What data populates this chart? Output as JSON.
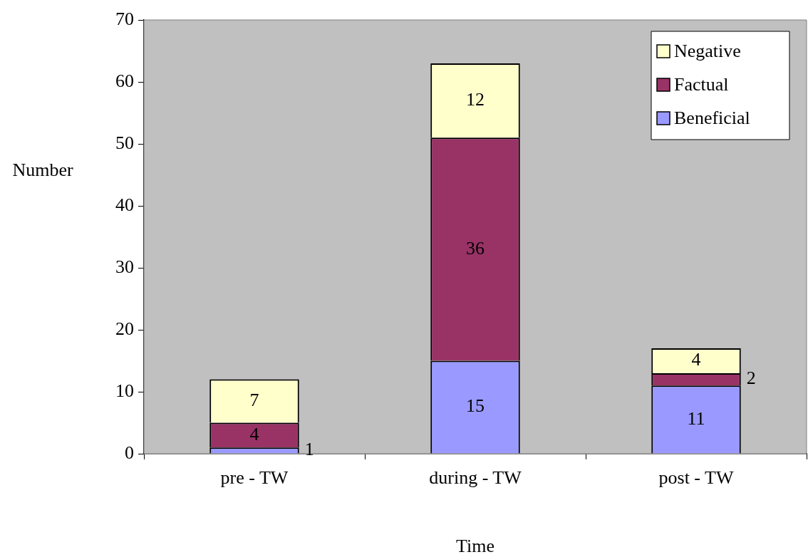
{
  "chart_data": {
    "type": "bar",
    "stacked": true,
    "xlabel": "Time",
    "ylabel": "Number",
    "categories": [
      "pre - TW",
      "during - TW",
      "post - TW"
    ],
    "series": [
      {
        "name": "Beneficial",
        "color": "#9999ff",
        "values": [
          1,
          15,
          11
        ]
      },
      {
        "name": "Factual",
        "color": "#993366",
        "values": [
          4,
          36,
          2
        ]
      },
      {
        "name": "Negative",
        "color": "#ffffcc",
        "values": [
          7,
          12,
          4
        ]
      }
    ],
    "ylim": [
      0,
      70
    ],
    "yticks": [
      0,
      10,
      20,
      30,
      40,
      50,
      60,
      70
    ],
    "grid": false,
    "legend": "top right",
    "data_labels": true
  }
}
